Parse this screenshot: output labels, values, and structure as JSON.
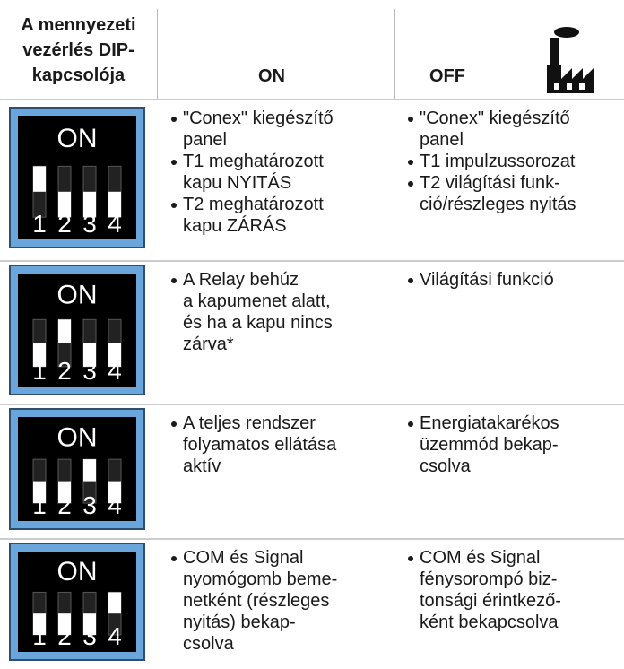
{
  "header": {
    "col1": [
      "A mennyezeti",
      "vezérlés DIP-",
      "kapcsolója"
    ],
    "on": "ON",
    "off": "OFF"
  },
  "rows": [
    {
      "switch": {
        "label": "ON",
        "numbers": [
          "1",
          "2",
          "3",
          "4"
        ]
      },
      "on": [
        [
          "\"Conex\" kiegészítő",
          "panel"
        ],
        [
          "T1 meghatározott",
          "kapu NYITÁS"
        ],
        [
          "T2 meghatározott",
          "kapu ZÁRÁS"
        ]
      ],
      "off": [
        [
          "\"Conex\" kiegészítő",
          "panel"
        ],
        [
          "T1 impulzussorozat"
        ],
        [
          "T2 világítási funk-",
          "ció/részleges nyitás"
        ]
      ]
    },
    {
      "switch": {
        "label": "ON",
        "numbers": [
          "1",
          "2",
          "3",
          "4"
        ]
      },
      "on": [
        [
          "A Relay behúz",
          "a kapumenet alatt,",
          "és ha a kapu nincs",
          "zárva*"
        ]
      ],
      "off": [
        [
          "Világítási funkció"
        ]
      ]
    },
    {
      "switch": {
        "label": "ON",
        "numbers": [
          "1",
          "2",
          "3",
          "4"
        ]
      },
      "on": [
        [
          "A teljes rendszer",
          "folyamatos ellátása",
          "aktív"
        ]
      ],
      "off": [
        [
          "Energiatakarékos",
          "üzemmód bekap-",
          "csolva"
        ]
      ]
    },
    {
      "switch": {
        "label": "ON",
        "numbers": [
          "1",
          "2",
          "3",
          "4"
        ]
      },
      "on": [
        [
          "COM és Signal",
          "nyomógomb beme-",
          "netként (részleges",
          "nyitás) bekap-",
          "csolva"
        ]
      ],
      "off": [
        [
          "COM és Signal",
          "fénysorompó biz-",
          "tonsági érintkező-",
          "ként bekapcsolva"
        ]
      ]
    }
  ]
}
